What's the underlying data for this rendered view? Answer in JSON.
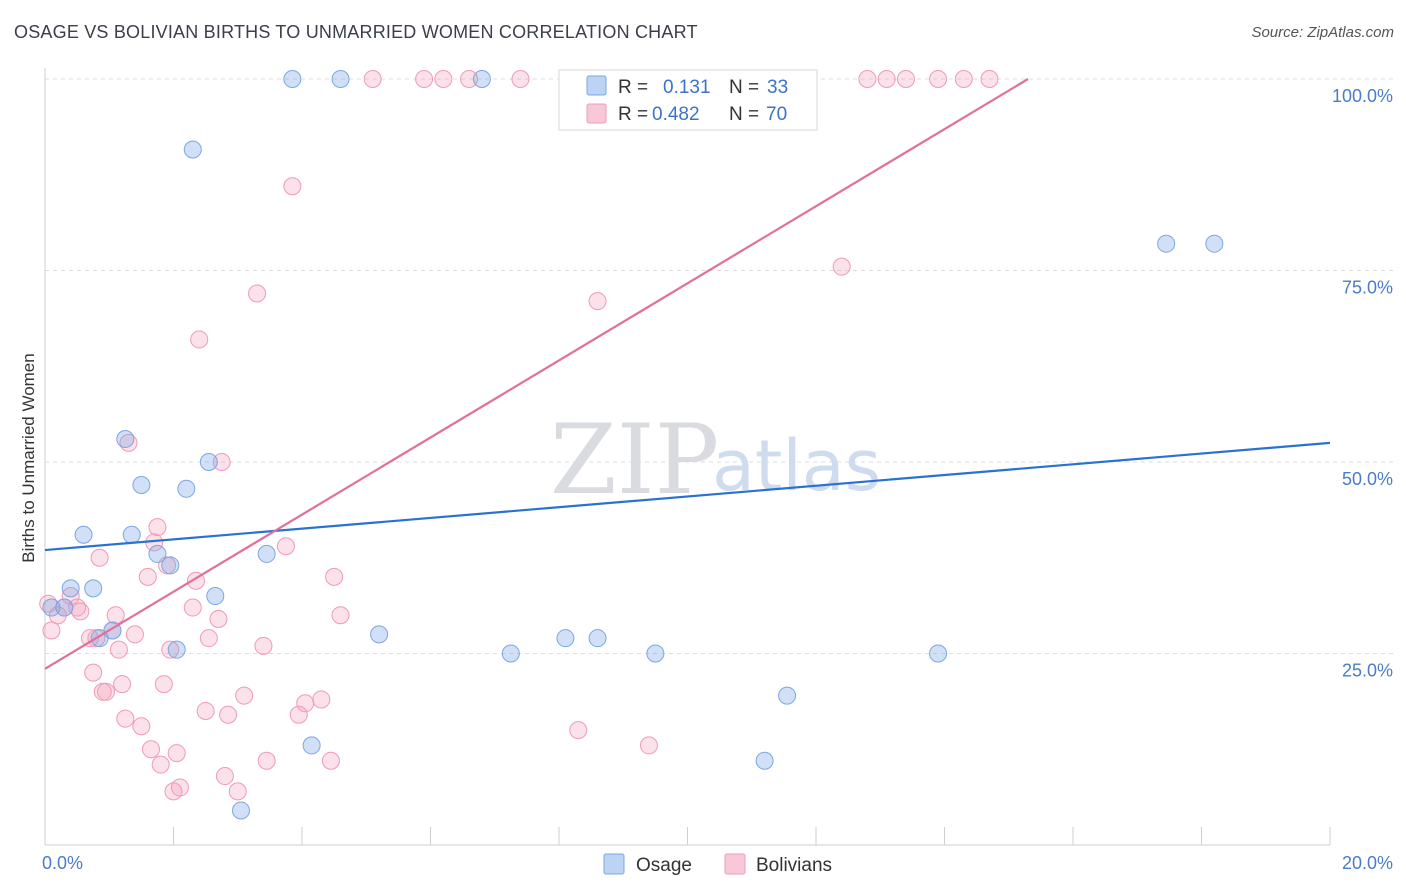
{
  "title": "OSAGE VS BOLIVIAN BIRTHS TO UNMARRIED WOMEN CORRELATION CHART",
  "source": "Source: ZipAtlas.com",
  "watermark": {
    "zip": "ZIP",
    "atlas": "atlas"
  },
  "colors": {
    "osage": "#7aa7e6",
    "bolivians": "#f19ab6",
    "osage_line": "#2a72d0",
    "bolivians_line": "#e0709a",
    "axis_text": "#4a7cc9"
  },
  "legend_box": {
    "rows": [
      {
        "r_label": "R =",
        "r_value": "0.131",
        "n_label": "N =",
        "n_value": "33"
      },
      {
        "r_label": "R =",
        "r_value": "0.482",
        "n_label": "N =",
        "n_value": "70"
      }
    ]
  },
  "chart_data": {
    "type": "scatter",
    "title": "OSAGE VS BOLIVIAN BIRTHS TO UNMARRIED WOMEN CORRELATION CHART",
    "xlabel": "",
    "ylabel": "Births to Unmarried Women",
    "xlim": [
      0,
      20
    ],
    "ylim": [
      0,
      100
    ],
    "x_tick_labels": [
      "0.0%",
      "20.0%"
    ],
    "y_tick_labels": [
      "25.0%",
      "50.0%",
      "75.0%",
      "100.0%"
    ],
    "y_ticks": [
      25,
      50,
      75,
      100
    ],
    "legend": [
      "Osage",
      "Bolivians"
    ],
    "series": [
      {
        "name": "Osage",
        "r": 0.131,
        "n": 33,
        "trend": {
          "x": [
            0,
            20
          ],
          "y": [
            38.5,
            52.5
          ]
        },
        "points": [
          [
            0.1,
            31
          ],
          [
            0.3,
            31
          ],
          [
            0.4,
            33.5
          ],
          [
            0.6,
            40.5
          ],
          [
            0.75,
            33.5
          ],
          [
            0.85,
            27
          ],
          [
            1.05,
            28
          ],
          [
            1.25,
            53
          ],
          [
            1.35,
            40.5
          ],
          [
            1.5,
            47
          ],
          [
            1.75,
            38
          ],
          [
            1.95,
            36.5
          ],
          [
            2.05,
            25.5
          ],
          [
            2.2,
            46.5
          ],
          [
            2.3,
            90.8
          ],
          [
            2.55,
            50
          ],
          [
            2.65,
            32.5
          ],
          [
            3.05,
            4.5
          ],
          [
            3.45,
            38
          ],
          [
            3.85,
            100
          ],
          [
            4.15,
            13
          ],
          [
            4.6,
            100
          ],
          [
            5.2,
            27.5
          ],
          [
            6.8,
            100
          ],
          [
            7.25,
            25
          ],
          [
            8.1,
            27
          ],
          [
            8.6,
            27
          ],
          [
            9.5,
            25
          ],
          [
            11.2,
            11
          ],
          [
            11.55,
            19.5
          ],
          [
            13.9,
            25
          ],
          [
            17.45,
            78.5
          ],
          [
            18.2,
            78.5
          ]
        ]
      },
      {
        "name": "Bolivians",
        "r": 0.482,
        "n": 70,
        "trend": {
          "x": [
            0,
            15.3
          ],
          "y": [
            23,
            100
          ]
        },
        "points": [
          [
            0.05,
            31.5
          ],
          [
            0.1,
            28
          ],
          [
            0.2,
            30
          ],
          [
            0.3,
            31
          ],
          [
            0.4,
            32.5
          ],
          [
            0.5,
            31
          ],
          [
            0.55,
            30.5
          ],
          [
            0.7,
            27
          ],
          [
            0.75,
            22.5
          ],
          [
            0.8,
            27
          ],
          [
            0.85,
            37.5
          ],
          [
            0.9,
            20
          ],
          [
            0.95,
            20
          ],
          [
            1.05,
            28
          ],
          [
            1.1,
            30
          ],
          [
            1.15,
            25.5
          ],
          [
            1.2,
            21
          ],
          [
            1.25,
            16.5
          ],
          [
            1.3,
            52.5
          ],
          [
            1.4,
            27.5
          ],
          [
            1.5,
            15.5
          ],
          [
            1.6,
            35
          ],
          [
            1.65,
            12.5
          ],
          [
            1.7,
            39.5
          ],
          [
            1.75,
            41.5
          ],
          [
            1.8,
            10.5
          ],
          [
            1.85,
            21
          ],
          [
            1.9,
            36.5
          ],
          [
            1.95,
            25.5
          ],
          [
            2.0,
            7
          ],
          [
            2.05,
            12
          ],
          [
            2.1,
            7.5
          ],
          [
            2.3,
            31
          ],
          [
            2.35,
            34.5
          ],
          [
            2.4,
            66
          ],
          [
            2.5,
            17.5
          ],
          [
            2.55,
            27
          ],
          [
            2.7,
            29.5
          ],
          [
            2.75,
            50
          ],
          [
            2.8,
            9
          ],
          [
            2.85,
            17
          ],
          [
            3.0,
            7
          ],
          [
            3.1,
            19.5
          ],
          [
            3.3,
            72
          ],
          [
            3.4,
            26
          ],
          [
            3.45,
            11
          ],
          [
            3.75,
            39
          ],
          [
            3.85,
            86
          ],
          [
            3.95,
            17
          ],
          [
            4.05,
            18.5
          ],
          [
            4.3,
            19
          ],
          [
            4.45,
            11
          ],
          [
            4.5,
            35
          ],
          [
            4.6,
            30
          ],
          [
            5.1,
            100
          ],
          [
            5.9,
            100
          ],
          [
            6.2,
            100
          ],
          [
            6.6,
            100
          ],
          [
            7.4,
            100
          ],
          [
            8.3,
            15
          ],
          [
            8.6,
            71
          ],
          [
            9.4,
            13
          ],
          [
            11.8,
            100
          ],
          [
            12.4,
            75.5
          ],
          [
            12.8,
            100
          ],
          [
            13.1,
            100
          ],
          [
            13.4,
            100
          ],
          [
            13.9,
            100
          ],
          [
            14.3,
            100
          ],
          [
            14.7,
            100
          ]
        ]
      }
    ]
  }
}
